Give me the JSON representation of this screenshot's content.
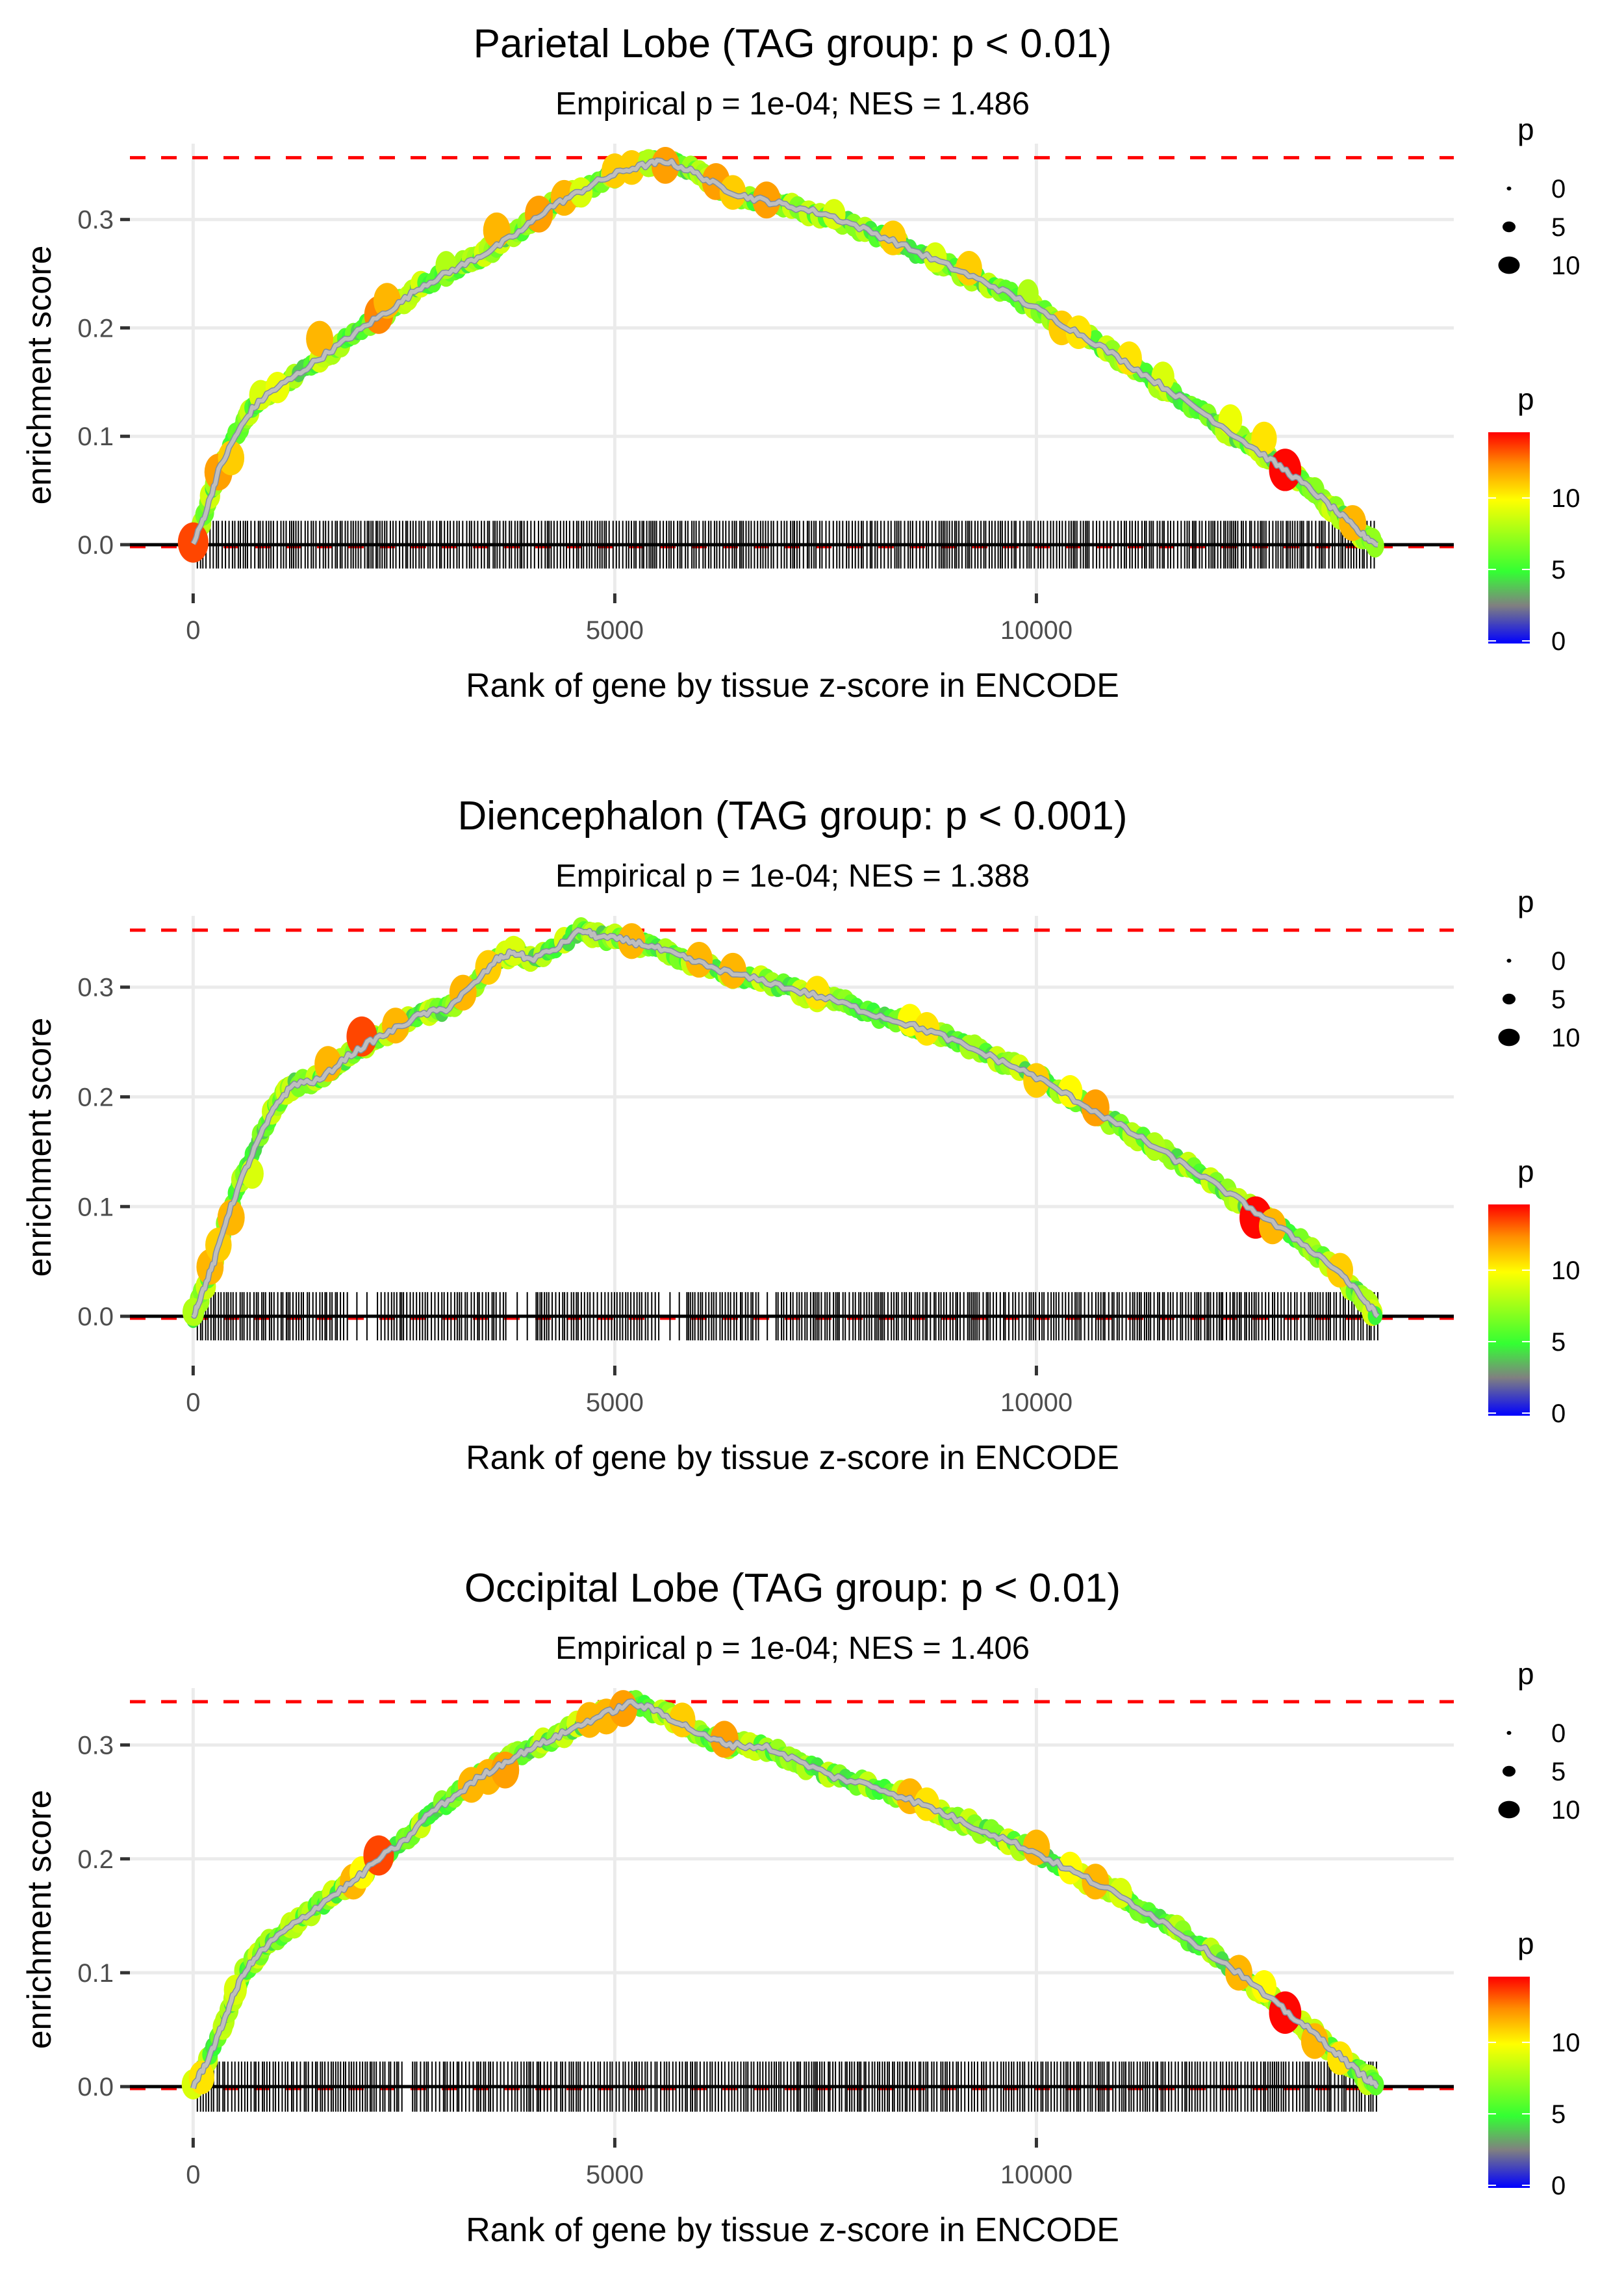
{
  "figure": {
    "panel_count": 3,
    "colors": {
      "gridline": "#ebebeb",
      "max_es_line": "#ff0000",
      "running_es_line": "#bebebe",
      "rug": "#000000",
      "axis_text": "#4d4d4d",
      "title_text": "#000000",
      "p_color_scale": [
        "#0000ff",
        "#808080",
        "#33ff33",
        "#ffff00",
        "#ff8c00",
        "#ff0000"
      ]
    }
  },
  "chart_data": [
    {
      "type": "line",
      "title": "Parietal Lobe (TAG group: p < 0.01)",
      "subtitle": "Empirical p = 1e-04; NES = 1.486",
      "xlabel": "Rank of gene by tissue z-score in ENCODE",
      "ylabel": "enrichment score",
      "xlim": [
        -750,
        14950
      ],
      "ylim": [
        -0.045,
        0.37
      ],
      "x_ticks": [
        0,
        5000,
        10000
      ],
      "x_tick_labels": [
        "0",
        "5000",
        "10000"
      ],
      "y_ticks": [
        0.0,
        0.1,
        0.2,
        0.3
      ],
      "y_tick_labels": [
        "0.0",
        "0.1",
        "0.2",
        "0.3"
      ],
      "grid": true,
      "max_es": 0.357,
      "rug_range": [
        50,
        14050
      ],
      "rug_density_gaps": [],
      "series": [
        {
          "name": "running enrichment score",
          "x": [
            0,
            150,
            300,
            500,
            700,
            900,
            1200,
            1500,
            1800,
            2100,
            2400,
            2700,
            3000,
            3300,
            3600,
            3900,
            4200,
            4500,
            4800,
            5100,
            5400,
            5600,
            5900,
            6200,
            6500,
            6800,
            7100,
            7500,
            7900,
            8300,
            8700,
            9100,
            9500,
            9900,
            10300,
            10700,
            11100,
            11500,
            11900,
            12300,
            12700,
            13000,
            13300,
            13600,
            13850,
            14050
          ],
          "y": [
            0.0,
            0.03,
            0.068,
            0.1,
            0.125,
            0.14,
            0.155,
            0.172,
            0.188,
            0.205,
            0.22,
            0.238,
            0.25,
            0.262,
            0.275,
            0.29,
            0.31,
            0.322,
            0.335,
            0.345,
            0.351,
            0.354,
            0.345,
            0.332,
            0.322,
            0.317,
            0.312,
            0.305,
            0.293,
            0.28,
            0.266,
            0.252,
            0.238,
            0.222,
            0.204,
            0.186,
            0.166,
            0.146,
            0.126,
            0.104,
            0.082,
            0.066,
            0.048,
            0.028,
            0.01,
            0.0
          ]
        }
      ],
      "points": {
        "name": "p",
        "x": [
          0,
          300,
          450,
          800,
          1000,
          1500,
          2200,
          2300,
          3000,
          3600,
          4100,
          4400,
          4600,
          5000,
          5200,
          5400,
          5600,
          6200,
          6400,
          6800,
          7600,
          8300,
          8800,
          9200,
          9900,
          10300,
          10500,
          11100,
          11500,
          12300,
          12700,
          12950,
          13300,
          13750
        ],
        "y": [
          0.002,
          0.067,
          0.08,
          0.138,
          0.145,
          0.19,
          0.212,
          0.225,
          0.258,
          0.29,
          0.305,
          0.32,
          0.325,
          0.345,
          0.348,
          0.352,
          0.35,
          0.335,
          0.325,
          0.318,
          0.305,
          0.283,
          0.265,
          0.255,
          0.232,
          0.2,
          0.196,
          0.172,
          0.155,
          0.115,
          0.098,
          0.069,
          0.05,
          0.02
        ],
        "p": [
          13.5,
          12,
          11,
          9,
          9.5,
          11.5,
          12.5,
          11.5,
          8,
          11.5,
          12,
          11.5,
          9,
          11,
          11,
          8,
          12,
          12,
          11,
          12,
          9,
          11,
          9,
          11,
          8,
          11,
          10.5,
          10.5,
          9,
          9.5,
          10.5,
          14.5,
          7,
          11.5
        ]
      },
      "legend_size": {
        "title": "p",
        "labels": [
          "0",
          "5",
          "10"
        ],
        "values": [
          0,
          5,
          10
        ],
        "placement": "right"
      },
      "legend_color": {
        "title": "p",
        "labels": [
          "0",
          "5",
          "10"
        ],
        "values": [
          0,
          5,
          10
        ],
        "range": [
          0,
          14.6
        ],
        "placement": "right"
      }
    },
    {
      "type": "line",
      "title": "Diencephalon (TAG group: p < 0.001)",
      "subtitle": "Empirical p = 1e-04; NES = 1.388",
      "xlabel": "Rank of gene by tissue z-score in ENCODE",
      "ylabel": "enrichment score",
      "xlim": [
        -750,
        14950
      ],
      "ylim": [
        -0.045,
        0.365
      ],
      "x_ticks": [
        0,
        5000,
        10000
      ],
      "x_tick_labels": [
        "0",
        "5000",
        "10000"
      ],
      "y_ticks": [
        0.0,
        0.1,
        0.2,
        0.3
      ],
      "y_tick_labels": [
        "0.0",
        "0.1",
        "0.2",
        "0.3"
      ],
      "grid": true,
      "max_es": 0.352,
      "rug_range": [
        50,
        14050
      ],
      "rug_density_gaps": [
        [
          1800,
          2100
        ],
        [
          3700,
          4000
        ],
        [
          5500,
          5800
        ],
        [
          6700,
          6900
        ]
      ],
      "series": [
        {
          "name": "running enrichment score",
          "x": [
            0,
            100,
            250,
            400,
            600,
            800,
            1000,
            1200,
            1500,
            1800,
            2100,
            2400,
            2700,
            3000,
            3300,
            3600,
            3800,
            4000,
            4300,
            4600,
            4800,
            5100,
            5400,
            5700,
            6000,
            6400,
            6800,
            7200,
            7600,
            8000,
            8400,
            8800,
            9200,
            9600,
            10000,
            10400,
            10800,
            11200,
            11600,
            12000,
            12400,
            12800,
            13200,
            13600,
            13850,
            14050
          ],
          "y": [
            0.0,
            0.02,
            0.05,
            0.09,
            0.13,
            0.165,
            0.195,
            0.212,
            0.215,
            0.235,
            0.25,
            0.262,
            0.275,
            0.28,
            0.3,
            0.325,
            0.332,
            0.325,
            0.335,
            0.352,
            0.346,
            0.343,
            0.338,
            0.33,
            0.322,
            0.312,
            0.305,
            0.296,
            0.288,
            0.277,
            0.268,
            0.258,
            0.245,
            0.232,
            0.218,
            0.2,
            0.182,
            0.164,
            0.145,
            0.126,
            0.106,
            0.085,
            0.064,
            0.04,
            0.018,
            0.0
          ]
        }
      ],
      "points": {
        "name": "p",
        "x": [
          0,
          200,
          300,
          450,
          700,
          1600,
          2000,
          2400,
          3200,
          3500,
          3800,
          5200,
          6000,
          6400,
          7400,
          8500,
          8700,
          10000,
          10400,
          10700,
          11400,
          12600,
          12800,
          13600
        ],
        "y": [
          0.004,
          0.045,
          0.065,
          0.09,
          0.13,
          0.23,
          0.255,
          0.265,
          0.295,
          0.318,
          0.333,
          0.342,
          0.325,
          0.315,
          0.295,
          0.27,
          0.262,
          0.215,
          0.205,
          0.19,
          0.155,
          0.09,
          0.082,
          0.042
        ],
        "p": [
          8,
          11.5,
          11,
          11.5,
          9,
          11.5,
          13.5,
          11.5,
          11.5,
          11,
          9,
          11.5,
          11.5,
          11.5,
          10.5,
          10,
          10.5,
          11,
          10,
          12,
          8,
          14.5,
          11.5,
          11
        ]
      },
      "legend_size": {
        "title": "p",
        "labels": [
          "0",
          "5",
          "10"
        ],
        "values": [
          0,
          5,
          10
        ],
        "placement": "right"
      },
      "legend_color": {
        "title": "p",
        "labels": [
          "0",
          "5",
          "10"
        ],
        "values": [
          0,
          5,
          10
        ],
        "range": [
          0,
          14.6
        ],
        "placement": "right"
      }
    },
    {
      "type": "line",
      "title": "Occipital Lobe (TAG group: p < 0.01)",
      "subtitle": "Empirical p = 1e-04; NES = 1.406",
      "xlabel": "Rank of gene by tissue z-score in ENCODE",
      "ylabel": "enrichment score",
      "xlim": [
        -750,
        14950
      ],
      "ylim": [
        -0.045,
        0.35
      ],
      "x_ticks": [
        0,
        5000,
        10000
      ],
      "x_tick_labels": [
        "0",
        "5000",
        "10000"
      ],
      "y_ticks": [
        0.0,
        0.1,
        0.2,
        0.3
      ],
      "y_tick_labels": [
        "0.0",
        "0.1",
        "0.2",
        "0.3"
      ],
      "grid": true,
      "max_es": 0.338,
      "rug_range": [
        50,
        14050
      ],
      "rug_density_gaps": [
        [
          2450,
          2600
        ]
      ],
      "series": [
        {
          "name": "running enrichment score",
          "x": [
            0,
            150,
            300,
            450,
            600,
            800,
            1000,
            1300,
            1600,
            1900,
            2200,
            2500,
            2800,
            3100,
            3400,
            3700,
            4000,
            4300,
            4600,
            4900,
            5200,
            5500,
            5800,
            6100,
            6400,
            6800,
            7200,
            7600,
            8000,
            8400,
            8800,
            9200,
            9600,
            10000,
            10400,
            10800,
            11200,
            11600,
            12000,
            12400,
            12800,
            13100,
            13400,
            13700,
            13900,
            14050
          ],
          "y": [
            0.0,
            0.02,
            0.045,
            0.075,
            0.1,
            0.118,
            0.132,
            0.148,
            0.165,
            0.18,
            0.2,
            0.215,
            0.24,
            0.255,
            0.272,
            0.285,
            0.297,
            0.307,
            0.318,
            0.328,
            0.337,
            0.33,
            0.318,
            0.306,
            0.3,
            0.298,
            0.285,
            0.272,
            0.265,
            0.255,
            0.243,
            0.23,
            0.218,
            0.205,
            0.19,
            0.175,
            0.158,
            0.14,
            0.12,
            0.1,
            0.075,
            0.058,
            0.04,
            0.02,
            0.008,
            0.0
          ]
        }
      ],
      "points": {
        "name": "p",
        "x": [
          0,
          100,
          500,
          1900,
          2000,
          2200,
          3300,
          3500,
          3700,
          4700,
          4900,
          5100,
          5800,
          6300,
          8500,
          8700,
          10000,
          10400,
          10700,
          11000,
          12400,
          12700,
          12950,
          13300,
          13600
        ],
        "y": [
          0.002,
          0.008,
          0.085,
          0.18,
          0.188,
          0.203,
          0.265,
          0.272,
          0.278,
          0.322,
          0.325,
          0.332,
          0.322,
          0.305,
          0.255,
          0.248,
          0.21,
          0.192,
          0.18,
          0.17,
          0.1,
          0.088,
          0.065,
          0.04,
          0.025
        ],
        "p": [
          9,
          10.5,
          9,
          11.5,
          10,
          13.5,
          11.5,
          11.5,
          12,
          11.5,
          11.5,
          12,
          11,
          12,
          11.5,
          10.5,
          11.5,
          10,
          11.5,
          9,
          11.5,
          10,
          14.5,
          11.5,
          10.5
        ]
      },
      "legend_size": {
        "title": "p",
        "labels": [
          "0",
          "5",
          "10"
        ],
        "values": [
          0,
          5,
          10
        ],
        "placement": "right"
      },
      "legend_color": {
        "title": "p",
        "labels": [
          "0",
          "5",
          "10"
        ],
        "values": [
          0,
          5,
          10
        ],
        "range": [
          0,
          14.6
        ],
        "placement": "right"
      }
    }
  ]
}
